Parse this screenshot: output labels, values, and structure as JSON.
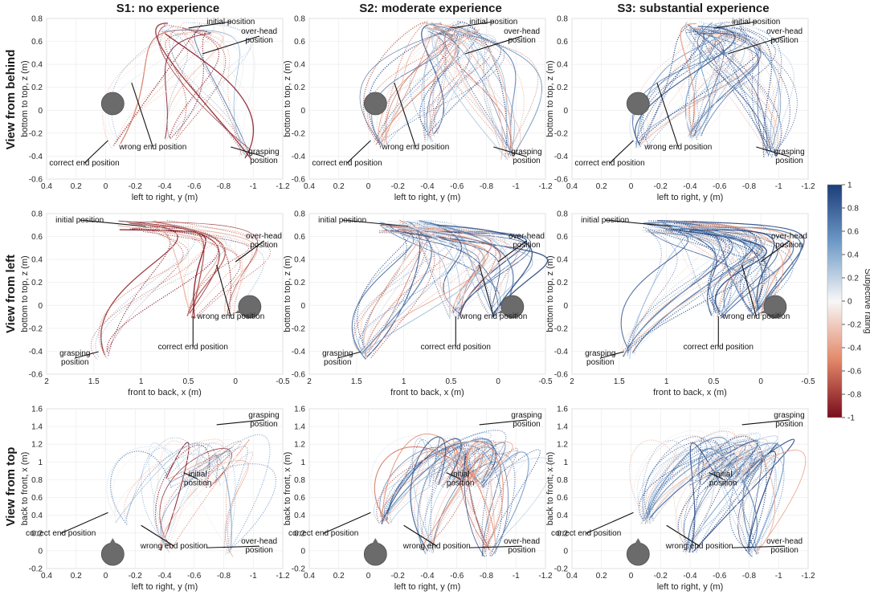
{
  "column_titles": [
    "S1: no experience",
    "S2: moderate experience",
    "S3: substantial experience"
  ],
  "row_titles": [
    "View from behind",
    "View from left",
    "View from top"
  ],
  "colorbar": {
    "label": "Subjective rating",
    "ticks": [
      "1",
      "0.8",
      "0.6",
      "0.4",
      "0.2",
      "0",
      "-0.2",
      "-0.4",
      "-0.6",
      "-0.8",
      "-1"
    ],
    "high_color": "#1c3d7a",
    "mid_color": "#f7f7f7",
    "low_color": "#7a0c1c"
  },
  "chart_data": [
    {
      "type": "line",
      "view": "behind",
      "xlabel": "left to right, y (m)",
      "ylabel": "bottom to top, z (m)",
      "xlim": [
        0.4,
        -1.2
      ],
      "ylim": [
        -0.6,
        0.8
      ],
      "xticks": [
        "0.4",
        "0.2",
        "0",
        "-0.2",
        "-0.4",
        "-0.6",
        "-0.8",
        "-1",
        "-1.2"
      ],
      "yticks": [
        "0.8",
        "0.6",
        "0.4",
        "0.2",
        "0",
        "-0.2",
        "-0.4",
        "-0.6"
      ],
      "annotations": [
        "initial position",
        "over-head position",
        "correct end position",
        "wrong end position",
        "grasping position"
      ]
    },
    {
      "type": "line",
      "view": "left",
      "xlabel": "front to back, x (m)",
      "ylabel": "bottom to top, z (m)",
      "xlim": [
        2,
        -0.5
      ],
      "ylim": [
        -0.6,
        0.8
      ],
      "xticks": [
        "2",
        "1.5",
        "1",
        "0.5",
        "0",
        "-0.5"
      ],
      "yticks": [
        "0.8",
        "0.6",
        "0.4",
        "0.2",
        "0",
        "-0.2",
        "-0.4",
        "-0.6"
      ],
      "annotations": [
        "initial position",
        "over-head position",
        "correct end position",
        "wrong end position",
        "grasping position"
      ]
    },
    {
      "type": "line",
      "view": "top",
      "xlabel": "left to right, y (m)",
      "ylabel": "back to front, x (m)",
      "xlim": [
        0.4,
        -1.2
      ],
      "ylim": [
        -0.2,
        1.6
      ],
      "xticks": [
        "0.4",
        "0.2",
        "0",
        "-0.2",
        "-0.4",
        "-0.6",
        "-0.8",
        "-1",
        "-1.2"
      ],
      "yticks": [
        "1.6",
        "1.4",
        "1.2",
        "1",
        "0.8",
        "0.6",
        "0.4",
        "0.2",
        "0",
        "-0.2"
      ],
      "annotations": [
        "initial position",
        "over-head position",
        "correct end position",
        "wrong end position",
        "grasping position"
      ]
    }
  ]
}
